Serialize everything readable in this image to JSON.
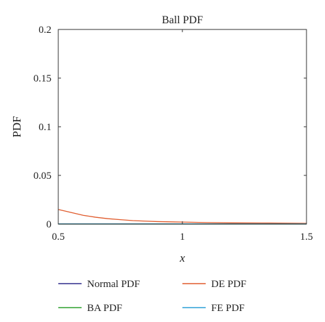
{
  "chart_data": {
    "type": "line",
    "title": "Ball PDF",
    "xlabel": "x",
    "ylabel": "PDF",
    "xlim": [
      0.5,
      1.5
    ],
    "ylim": [
      0,
      0.2
    ],
    "x_ticks": [
      0.5,
      1,
      1.5
    ],
    "x_tick_labels": [
      "0.5",
      "1",
      "1.5"
    ],
    "y_ticks": [
      0,
      0.05,
      0.1,
      0.15,
      0.2
    ],
    "y_tick_labels": [
      "0",
      "0.05",
      "0.1",
      "0.15",
      "0.2"
    ],
    "grid": false,
    "legend_position": "bottom",
    "series": [
      {
        "name": "Normal PDF",
        "color": "#2e2a8c",
        "x": [
          0.5,
          0.6,
          0.7,
          0.8,
          0.9,
          1.0,
          1.1,
          1.2,
          1.3,
          1.4,
          1.5
        ],
        "y": [
          0,
          0,
          0,
          0,
          0,
          0,
          0,
          0,
          0,
          0,
          0
        ]
      },
      {
        "name": "DE PDF",
        "color": "#e05a2b",
        "x": [
          0.5,
          0.55,
          0.6,
          0.65,
          0.7,
          0.75,
          0.8,
          0.85,
          0.9,
          1.0,
          1.1,
          1.2,
          1.35,
          1.5
        ],
        "y": [
          0.015,
          0.012,
          0.009,
          0.007,
          0.0055,
          0.0045,
          0.0035,
          0.003,
          0.0025,
          0.002,
          0.0015,
          0.0012,
          0.001,
          0.0007
        ]
      },
      {
        "name": "BA PDF",
        "color": "#2ca02c",
        "x": [
          0.5,
          0.6,
          0.7,
          0.8,
          0.9,
          1.0,
          1.1,
          1.2,
          1.3,
          1.4,
          1.5
        ],
        "y": [
          0,
          0,
          0,
          0,
          0,
          0,
          0,
          0,
          0,
          0,
          0
        ]
      },
      {
        "name": "FE PDF",
        "color": "#2a9fd6",
        "x": [
          0.5,
          0.6,
          0.7,
          0.8,
          0.9,
          1.0,
          1.1,
          1.2,
          1.3,
          1.4,
          1.5
        ],
        "y": [
          0.0002,
          0.0002,
          0.0002,
          0.0002,
          0.0002,
          0.0002,
          0.0002,
          0.0002,
          0.0002,
          0.0002,
          0.0002
        ]
      }
    ]
  }
}
